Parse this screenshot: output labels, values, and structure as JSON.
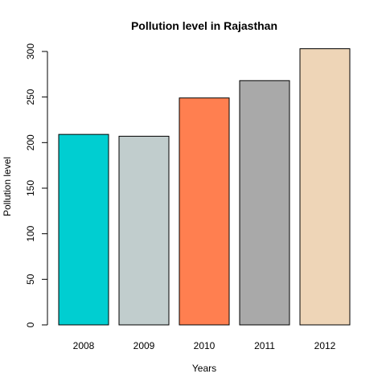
{
  "chart_data": {
    "type": "bar",
    "title": "Pollution level in Rajasthan",
    "xlabel": "Years",
    "ylabel": "Pollution level",
    "categories": [
      "2008",
      "2009",
      "2010",
      "2011",
      "2012"
    ],
    "values": [
      209,
      207,
      249,
      268,
      303
    ],
    "colors": [
      "#00CED1",
      "#C1CDCD",
      "#FF7F50",
      "#A9A9A9",
      "#EED5B7"
    ],
    "ylim": [
      0,
      300
    ],
    "yticks": [
      0,
      50,
      100,
      150,
      200,
      250,
      300
    ],
    "grid": false,
    "legend": "none"
  }
}
